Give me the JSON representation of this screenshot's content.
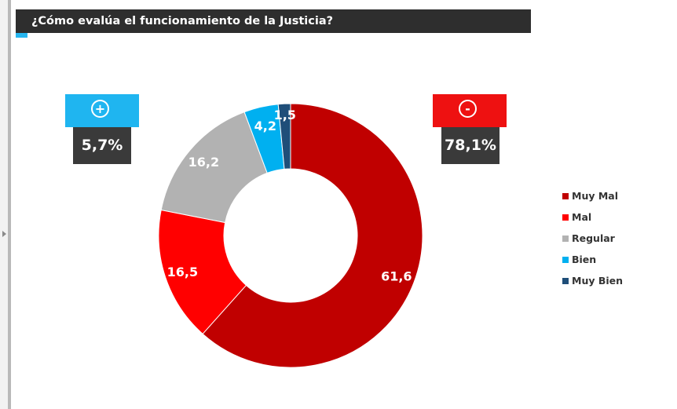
{
  "title": "¿Cómo evalúa el funcionamiento de la Justicia?",
  "colors": {
    "title_bar": "#2e2e2e",
    "title_accent": "#27b6f0",
    "positive": "#1fb5f0",
    "negative": "#ee1111",
    "value_box": "#3a3a3a"
  },
  "positive_badge": {
    "icon": "plus-icon",
    "symbol": "+",
    "value": "5,7%"
  },
  "negative_badge": {
    "icon": "minus-icon",
    "symbol": "-",
    "value": "78,1%"
  },
  "chart_data": {
    "type": "pie",
    "variant": "donut",
    "legend_position": "right",
    "series": [
      {
        "name": "Muy Mal",
        "value": 61.6,
        "label": "61,6",
        "color": "#c00000"
      },
      {
        "name": "Mal",
        "value": 16.5,
        "label": "16,5",
        "color": "#ff0000"
      },
      {
        "name": "Regular",
        "value": 16.2,
        "label": "16,2",
        "color": "#b2b2b2"
      },
      {
        "name": "Bien",
        "value": 4.2,
        "label": "4,2",
        "color": "#00b0f0"
      },
      {
        "name": "Muy Bien",
        "value": 1.5,
        "label": "1,5",
        "color": "#1f4e79"
      }
    ]
  }
}
